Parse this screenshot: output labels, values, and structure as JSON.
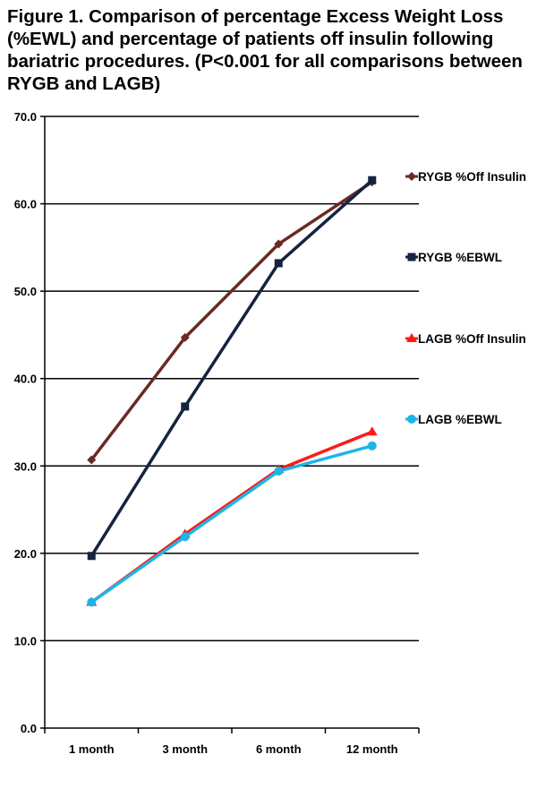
{
  "chart_data": {
    "type": "line",
    "title": "Figure 1. Comparison of percentage Excess Weight Loss (%EWL) and percentage of patients off insulin following bariatric procedures. (P<0.001 for all comparisons between RYGB and LAGB)",
    "xlabel": "",
    "ylabel": "",
    "categories": [
      "1 month",
      "3 month",
      "6 month",
      "12 month"
    ],
    "ylim": [
      0,
      70
    ],
    "yticks": [
      "0.0",
      "10.0",
      "20.0",
      "30.0",
      "40.0",
      "50.0",
      "60.0",
      "70.0"
    ],
    "grid": "horizontal",
    "legend_position": "right",
    "series": [
      {
        "name": "RYGB %Off Insulin",
        "values": [
          30.7,
          44.7,
          55.4,
          62.5
        ],
        "color": "#6b2a24",
        "marker": "diamond"
      },
      {
        "name": "RYGB %EBWL",
        "values": [
          19.7,
          36.8,
          53.2,
          62.7
        ],
        "color": "#14233f",
        "marker": "square"
      },
      {
        "name": "LAGB %Off Insulin",
        "values": [
          14.4,
          22.2,
          29.6,
          33.9
        ],
        "color": "#ff1a1a",
        "marker": "triangle"
      },
      {
        "name": "LAGB %EBWL",
        "values": [
          14.4,
          21.9,
          29.4,
          32.3
        ],
        "color": "#1fb4e8",
        "marker": "circle"
      }
    ]
  }
}
